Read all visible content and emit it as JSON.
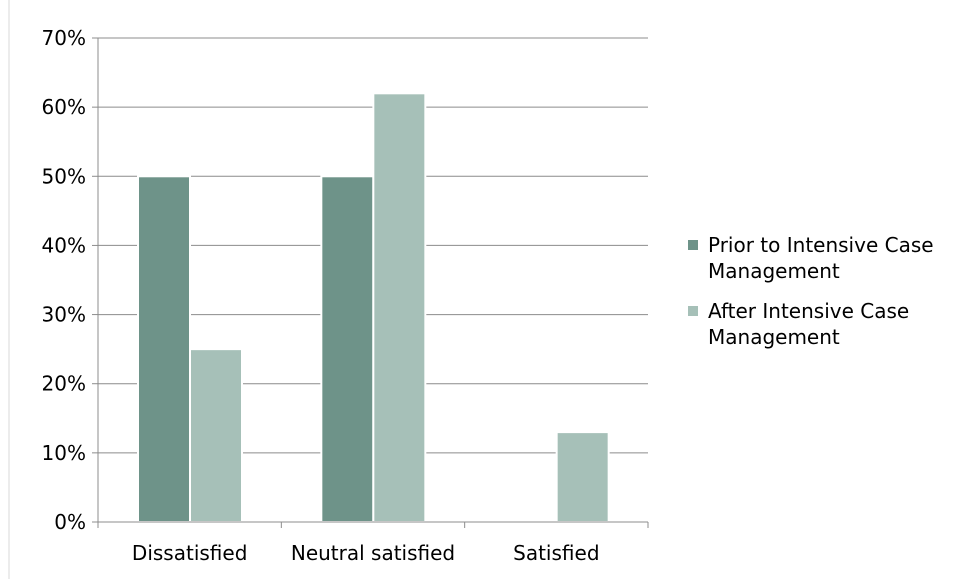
{
  "chart_data": {
    "type": "bar",
    "categories": [
      "Dissatisfied",
      "Neutral satisfied",
      "Satisfied"
    ],
    "series": [
      {
        "name": "Prior to Intensive Case Management",
        "values": [
          50,
          50,
          0
        ],
        "color": "#6e9389"
      },
      {
        "name": "After Intensive Case Management",
        "values": [
          25,
          62,
          13
        ],
        "color": "#a6c0b8"
      }
    ],
    "y_ticks": [
      "0%",
      "10%",
      "20%",
      "30%",
      "40%",
      "50%",
      "60%",
      "70%"
    ],
    "ylim": [
      0,
      70
    ],
    "grid": true,
    "legend_position": "right"
  }
}
